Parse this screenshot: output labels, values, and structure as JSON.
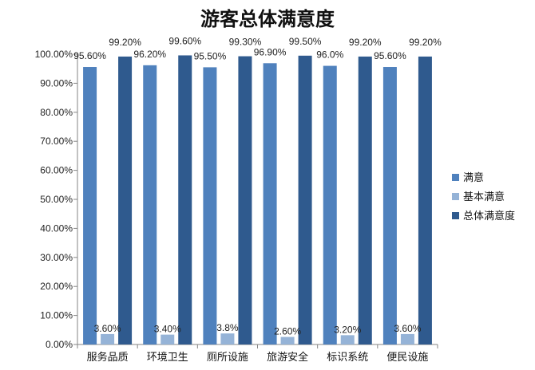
{
  "chart_data": {
    "type": "bar",
    "title": "游客总体满意度",
    "categories": [
      "服务品质",
      "环境卫生",
      "厕所设施",
      "旅游安全",
      "标识系统",
      "便民设施"
    ],
    "series": [
      {
        "name": "满意",
        "color": "#4f81bd",
        "values": [
          95.6,
          96.2,
          95.5,
          96.9,
          96.0,
          95.6
        ],
        "labels": [
          "95.60%",
          "96.20%",
          "95.50%",
          "96.90%",
          "96.0%",
          "95.60%"
        ]
      },
      {
        "name": "基本满意",
        "color": "#95b3d7",
        "values": [
          3.6,
          3.4,
          3.8,
          2.6,
          3.2,
          3.6
        ],
        "labels": [
          "3.60%",
          "3.40%",
          "3.8%",
          "2.60%",
          "3.20%",
          "3.60%"
        ]
      },
      {
        "name": "总体满意度",
        "color": "#2f5a8e",
        "values": [
          99.2,
          99.6,
          99.3,
          99.5,
          99.2,
          99.2
        ],
        "labels": [
          "99.20%",
          "99.60%",
          "99.30%",
          "99.50%",
          "99.20%",
          "99.20%"
        ]
      }
    ],
    "yticks": [
      "0.00%",
      "10.00%",
      "20.00%",
      "30.00%",
      "40.00%",
      "50.00%",
      "60.00%",
      "70.00%",
      "80.00%",
      "90.00%",
      "100.00%"
    ],
    "ylim": [
      0,
      100
    ],
    "grid": false,
    "legend_position": "right"
  }
}
